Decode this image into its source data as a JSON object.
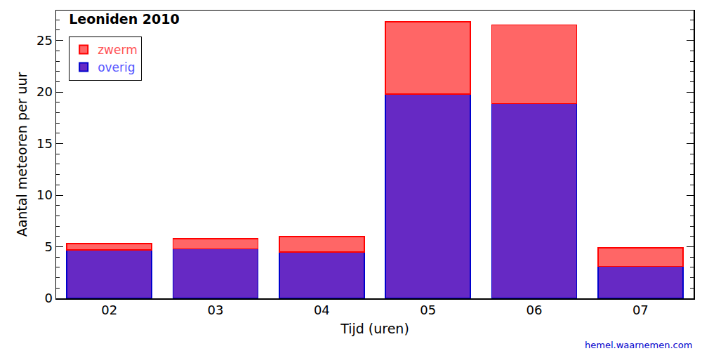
{
  "chart_data": {
    "type": "bar",
    "stacked": true,
    "title": "Leoniden 2010",
    "x_label": "Tijd (uren)",
    "y_label": "Aantal meteoren per uur",
    "categories": [
      "02",
      "03",
      "04",
      "05",
      "06",
      "07"
    ],
    "series": [
      {
        "name": "zwerm",
        "color": "#ff6666",
        "values": [
          0.6,
          1.0,
          1.5,
          7.0,
          7.6,
          1.8
        ]
      },
      {
        "name": "overig",
        "color": "#6629c4",
        "values": [
          4.7,
          4.8,
          4.5,
          19.8,
          18.9,
          3.1
        ]
      }
    ],
    "ylim": [
      0,
      27.9
    ],
    "yticks": [
      0,
      5,
      10,
      15,
      20,
      25
    ],
    "grid": false,
    "legend": "upper left",
    "annotations": [
      {
        "text": "hemel.waarnemen.com"
      }
    ]
  }
}
